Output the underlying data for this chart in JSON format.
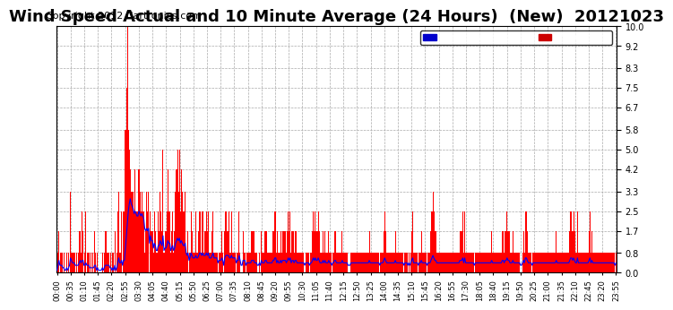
{
  "title": "Wind Speed Actual and 10 Minute Average (24 Hours)  (New)  20121023",
  "copyright": "Copyright 2012 Cartronics.com",
  "yticks": [
    0.0,
    0.8,
    1.7,
    2.5,
    3.3,
    4.2,
    5.0,
    5.8,
    6.7,
    7.5,
    8.3,
    9.2,
    10.0
  ],
  "ylim": [
    0.0,
    10.0
  ],
  "xtick_labels": [
    "00:00",
    "00:35",
    "01:10",
    "01:45",
    "02:20",
    "02:55",
    "03:30",
    "04:05",
    "04:40",
    "05:15",
    "05:50",
    "06:25",
    "07:00",
    "07:35",
    "08:10",
    "08:45",
    "09:20",
    "09:55",
    "10:30",
    "11:05",
    "11:40",
    "12:15",
    "12:50",
    "13:25",
    "14:00",
    "14:35",
    "15:10",
    "15:45",
    "16:20",
    "16:55",
    "17:30",
    "18:05",
    "18:40",
    "19:15",
    "19:50",
    "20:25",
    "21:00",
    "21:35",
    "22:10",
    "22:45",
    "23:20",
    "23:55"
  ],
  "legend_avg_color": "#0000ff",
  "legend_avg_bg": "#0000cc",
  "legend_wind_color": "#ff0000",
  "legend_wind_bg": "#cc0000",
  "bar_color": "#ff0000",
  "line_color": "#0000ff",
  "grid_color": "#aaaaaa",
  "bg_color": "#ffffff",
  "title_fontsize": 13,
  "copyright_fontsize": 8,
  "wind_values": [
    0.0,
    0.8,
    1.7,
    0.0,
    0.8,
    0.8,
    0.0,
    0.8,
    0.0,
    0.0,
    0.8,
    0.0,
    0.8,
    0.0,
    3.3,
    0.8,
    0.8,
    0.8,
    0.8,
    0.0,
    0.8,
    0.0,
    0.8,
    1.7,
    1.7,
    0.8,
    2.5,
    1.7,
    0.0,
    0.8,
    2.5,
    0.0,
    0.8,
    0.8,
    0.0,
    0.8,
    0.0,
    0.8,
    0.0,
    1.7,
    0.8,
    0.0,
    0.8,
    0.0,
    0.0,
    0.0,
    0.0,
    0.8,
    0.0,
    0.8,
    1.7,
    1.7,
    0.8,
    0.8,
    0.8,
    0.0,
    0.8,
    0.0,
    0.8,
    0.0,
    1.7,
    0.0,
    0.8,
    2.5,
    3.3,
    0.8,
    0.8,
    2.5,
    0.0,
    2.5,
    2.5,
    5.8,
    7.5,
    10.0,
    5.8,
    5.0,
    4.2,
    3.3,
    3.3,
    3.3,
    2.5,
    4.2,
    2.5,
    2.5,
    2.5,
    4.2,
    3.3,
    2.5,
    3.3,
    2.5,
    2.5,
    0.8,
    1.7,
    3.3,
    2.5,
    3.3,
    0.0,
    2.5,
    1.7,
    1.7,
    0.8,
    2.5,
    1.7,
    0.8,
    0.8,
    2.5,
    1.7,
    3.3,
    2.5,
    1.7,
    5.0,
    0.8,
    1.7,
    1.7,
    2.5,
    4.2,
    2.5,
    2.5,
    0.8,
    1.7,
    2.5,
    0.8,
    1.7,
    3.3,
    4.2,
    5.0,
    3.3,
    5.0,
    2.5,
    4.2,
    3.3,
    2.5,
    2.5,
    3.3,
    0.8,
    0.8,
    1.7,
    0.0,
    0.8,
    2.5,
    1.7,
    0.8,
    0.8,
    0.8,
    2.5,
    0.8,
    0.8,
    1.7,
    2.5,
    2.5,
    0.8,
    2.5,
    0.8,
    1.7,
    1.7,
    2.5,
    1.7,
    2.5,
    0.8,
    0.8,
    0.8,
    1.7,
    2.5,
    0.8,
    0.8,
    0.8,
    0.8,
    0.0,
    0.8,
    0.8,
    0.8,
    1.7,
    0.8,
    0.0,
    1.7,
    2.5,
    2.5,
    1.7,
    2.5,
    0.8,
    0.8,
    2.5,
    0.8,
    0.8,
    0.8,
    0.8,
    0.0,
    0.8,
    0.8,
    2.5,
    0.8,
    0.0,
    0.0,
    1.7,
    0.8,
    0.8,
    0.0,
    0.8,
    0.8,
    0.8,
    0.8,
    0.8,
    1.7,
    1.7,
    1.7,
    0.8,
    0.8,
    0.8,
    0.0,
    0.0,
    0.8,
    0.0,
    1.7,
    0.8,
    0.8,
    0.8,
    1.7,
    1.7,
    0.8,
    0.8,
    0.8,
    0.8,
    0.8,
    0.8,
    1.7,
    1.7,
    2.5,
    2.5,
    0.8,
    1.7,
    0.8,
    0.8,
    1.7,
    0.8,
    1.7,
    1.7,
    1.7,
    1.7,
    0.8,
    1.7,
    2.5,
    1.7,
    2.5,
    0.8,
    1.7,
    1.7,
    0.8,
    1.7,
    1.7,
    0.8,
    0.8,
    0.8,
    0.8,
    0.8,
    0.8,
    0.8,
    0.8,
    0.0,
    0.8,
    0.8,
    0.8,
    0.8,
    0.0,
    0.8,
    0.8,
    1.7,
    2.5,
    1.7,
    2.5,
    1.7,
    1.7,
    2.5,
    1.7,
    0.8,
    0.8,
    0.8,
    1.7,
    0.8,
    1.7,
    0.8,
    0.8,
    0.8,
    1.7,
    0.8,
    0.8,
    0.0,
    0.8,
    0.8,
    1.7,
    1.7,
    0.8,
    0.8,
    0.8,
    0.8,
    0.8,
    0.8,
    1.7,
    0.8,
    0.8,
    0.8,
    0.8,
    0.8,
    0.0,
    0.0,
    0.0,
    0.8,
    0.8,
    0.8,
    0.8,
    0.8,
    0.8,
    0.8,
    0.8,
    0.8,
    0.8,
    0.8,
    0.8,
    0.8,
    0.8,
    0.8,
    0.8,
    0.8,
    0.8,
    0.8,
    1.7,
    0.8,
    0.8,
    0.8,
    0.8,
    0.8,
    0.8,
    0.8,
    0.8,
    0.8,
    0.8,
    0.0,
    0.8,
    0.8,
    0.8,
    1.7,
    2.5,
    1.7,
    0.8,
    0.8,
    0.8,
    0.8,
    0.8,
    0.8,
    0.8,
    0.8,
    0.8,
    1.7,
    0.8,
    0.8,
    0.8,
    0.8,
    0.8,
    0.8,
    0.8,
    0.8,
    0.0,
    0.8,
    0.8,
    0.8,
    0.0,
    0.8,
    0.0,
    0.8,
    1.7,
    2.5,
    0.8,
    0.8,
    0.8,
    0.8,
    0.8,
    0.0,
    0.8,
    0.8,
    1.7,
    0.8,
    0.8,
    0.8,
    0.8,
    0.8,
    0.0,
    0.8,
    0.8,
    0.8,
    1.7,
    2.5,
    3.3,
    2.5,
    1.7,
    1.7,
    0.8,
    0.8,
    0.8,
    0.8,
    0.8,
    0.8,
    0.8,
    0.8,
    0.8,
    0.8,
    0.8,
    0.8,
    0.8,
    0.8,
    0.8,
    0.8,
    0.8,
    0.8,
    0.8,
    0.8,
    0.8,
    0.8,
    0.8,
    0.8,
    1.7,
    1.7,
    1.7,
    2.5,
    0.8,
    2.5,
    0.8,
    0.8,
    0.8,
    0.8,
    0.8,
    0.8,
    0.8,
    0.8,
    0.8,
    0.0,
    0.8,
    0.8,
    0.8,
    0.8,
    0.8,
    0.8,
    0.8,
    0.8,
    0.8,
    0.8,
    0.8,
    0.8,
    0.8,
    0.8,
    0.8,
    0.8,
    0.8,
    1.7,
    0.8,
    0.8,
    0.8,
    0.8,
    0.8,
    0.8,
    0.8,
    0.8,
    0.8,
    0.8,
    1.7,
    1.7,
    0.8,
    1.7,
    1.7,
    2.5,
    1.7,
    1.7,
    0.8,
    0.8,
    0.8,
    1.7,
    0.8,
    0.8,
    0.8,
    0.8,
    0.8,
    0.8,
    0.8,
    0.0,
    0.0,
    0.8,
    1.7,
    0.8,
    2.5,
    2.5,
    1.7,
    0.8,
    0.8,
    0.8,
    0.8,
    0.0,
    0.8,
    0.8,
    0.8,
    0.8,
    0.8,
    0.8,
    0.8,
    0.8,
    0.8,
    0.8,
    0.8,
    0.8,
    0.8,
    0.8,
    0.8,
    0.8,
    0.8,
    0.8,
    0.8,
    0.8,
    0.8,
    0.8,
    0.8,
    0.8,
    1.7,
    0.8,
    0.8,
    0.8,
    0.8,
    0.8,
    0.8,
    0.8,
    0.8,
    0.8,
    0.8,
    0.8,
    0.8,
    0.8,
    1.7,
    2.5,
    2.5,
    1.7,
    2.5,
    1.7,
    0.8,
    0.8,
    2.5,
    0.8,
    0.8,
    0.8,
    0.8,
    0.8,
    0.8,
    0.8,
    0.8,
    0.8,
    0.8,
    0.8,
    1.7,
    2.5,
    0.8,
    1.7,
    0.8,
    0.8,
    0.8,
    0.8,
    0.8,
    0.8,
    0.8,
    0.8,
    0.8,
    0.8,
    0.8,
    0.8,
    0.8,
    0.8,
    0.8,
    0.8,
    0.8,
    0.8,
    0.8,
    0.8,
    0.8,
    0.8,
    0.8,
    0.0,
    0.8
  ],
  "avg_values": [
    0.1,
    0.3,
    0.5,
    0.3,
    0.3,
    0.3,
    0.2,
    0.2,
    0.1,
    0.1,
    0.2,
    0.1,
    0.2,
    0.3,
    0.6,
    0.5,
    0.4,
    0.4,
    0.4,
    0.3,
    0.3,
    0.3,
    0.3,
    0.4,
    0.5,
    0.4,
    0.5,
    0.5,
    0.3,
    0.3,
    0.4,
    0.3,
    0.3,
    0.3,
    0.2,
    0.2,
    0.2,
    0.2,
    0.2,
    0.3,
    0.3,
    0.1,
    0.2,
    0.1,
    0.1,
    0.1,
    0.1,
    0.2,
    0.1,
    0.2,
    0.3,
    0.3,
    0.3,
    0.3,
    0.3,
    0.2,
    0.2,
    0.1,
    0.2,
    0.1,
    0.3,
    0.1,
    0.2,
    0.4,
    0.6,
    0.4,
    0.4,
    0.5,
    0.3,
    0.5,
    0.5,
    1.0,
    1.5,
    2.0,
    2.5,
    2.8,
    3.0,
    2.8,
    2.7,
    2.6,
    2.4,
    2.5,
    2.4,
    2.3,
    2.3,
    2.5,
    2.4,
    2.3,
    2.4,
    2.3,
    2.2,
    1.8,
    1.7,
    1.8,
    1.7,
    1.8,
    1.2,
    1.5,
    1.3,
    1.3,
    1.0,
    1.2,
    1.1,
    0.9,
    0.9,
    1.1,
    1.1,
    1.3,
    1.2,
    1.1,
    1.5,
    0.9,
    1.0,
    1.0,
    1.1,
    1.3,
    1.2,
    1.2,
    0.9,
    1.0,
    1.1,
    0.9,
    1.0,
    1.2,
    1.3,
    1.4,
    1.3,
    1.4,
    1.2,
    1.3,
    1.2,
    1.1,
    1.1,
    1.2,
    0.8,
    0.7,
    0.8,
    0.5,
    0.6,
    0.8,
    0.7,
    0.6,
    0.6,
    0.6,
    0.7,
    0.6,
    0.6,
    0.7,
    0.8,
    0.8,
    0.7,
    0.8,
    0.7,
    0.7,
    0.7,
    0.8,
    0.7,
    0.8,
    0.6,
    0.6,
    0.6,
    0.7,
    0.8,
    0.6,
    0.6,
    0.6,
    0.6,
    0.4,
    0.5,
    0.5,
    0.5,
    0.6,
    0.5,
    0.3,
    0.6,
    0.7,
    0.7,
    0.7,
    0.7,
    0.6,
    0.6,
    0.7,
    0.6,
    0.6,
    0.6,
    0.6,
    0.4,
    0.5,
    0.5,
    0.7,
    0.5,
    0.3,
    0.3,
    0.5,
    0.5,
    0.5,
    0.3,
    0.4,
    0.4,
    0.4,
    0.4,
    0.4,
    0.5,
    0.5,
    0.5,
    0.4,
    0.4,
    0.4,
    0.3,
    0.3,
    0.4,
    0.3,
    0.5,
    0.4,
    0.4,
    0.4,
    0.5,
    0.5,
    0.4,
    0.4,
    0.4,
    0.4,
    0.4,
    0.4,
    0.5,
    0.5,
    0.6,
    0.6,
    0.4,
    0.5,
    0.4,
    0.4,
    0.5,
    0.4,
    0.5,
    0.5,
    0.5,
    0.5,
    0.4,
    0.5,
    0.6,
    0.5,
    0.6,
    0.4,
    0.5,
    0.5,
    0.4,
    0.5,
    0.5,
    0.4,
    0.4,
    0.4,
    0.4,
    0.4,
    0.4,
    0.4,
    0.4,
    0.3,
    0.4,
    0.4,
    0.4,
    0.4,
    0.3,
    0.4,
    0.4,
    0.5,
    0.6,
    0.5,
    0.6,
    0.5,
    0.5,
    0.6,
    0.5,
    0.4,
    0.4,
    0.4,
    0.5,
    0.4,
    0.5,
    0.4,
    0.4,
    0.4,
    0.5,
    0.4,
    0.4,
    0.3,
    0.4,
    0.4,
    0.5,
    0.5,
    0.4,
    0.4,
    0.4,
    0.4,
    0.4,
    0.4,
    0.5,
    0.4,
    0.4,
    0.4,
    0.4,
    0.4,
    0.3,
    0.3,
    0.3,
    0.4,
    0.4,
    0.4,
    0.4,
    0.4,
    0.4,
    0.4,
    0.4,
    0.4,
    0.4,
    0.4,
    0.4,
    0.4,
    0.4,
    0.4,
    0.4,
    0.4,
    0.4,
    0.4,
    0.5,
    0.4,
    0.4,
    0.4,
    0.4,
    0.4,
    0.4,
    0.4,
    0.4,
    0.4,
    0.4,
    0.3,
    0.4,
    0.4,
    0.4,
    0.5,
    0.6,
    0.5,
    0.4,
    0.4,
    0.4,
    0.4,
    0.4,
    0.4,
    0.4,
    0.4,
    0.4,
    0.5,
    0.4,
    0.4,
    0.4,
    0.4,
    0.4,
    0.4,
    0.4,
    0.4,
    0.3,
    0.4,
    0.4,
    0.4,
    0.3,
    0.4,
    0.3,
    0.4,
    0.5,
    0.6,
    0.4,
    0.4,
    0.4,
    0.4,
    0.4,
    0.3,
    0.4,
    0.4,
    0.5,
    0.4,
    0.4,
    0.4,
    0.4,
    0.4,
    0.3,
    0.4,
    0.4,
    0.4,
    0.5,
    0.6,
    0.7,
    0.6,
    0.5,
    0.5,
    0.4,
    0.4,
    0.4,
    0.4,
    0.4,
    0.4,
    0.4,
    0.4,
    0.4,
    0.4,
    0.4,
    0.4,
    0.4,
    0.4,
    0.4,
    0.4,
    0.4,
    0.4,
    0.4,
    0.4,
    0.4,
    0.4,
    0.4,
    0.4,
    0.5,
    0.5,
    0.5,
    0.6,
    0.4,
    0.6,
    0.4,
    0.4,
    0.4,
    0.4,
    0.4,
    0.4,
    0.4,
    0.4,
    0.4,
    0.3,
    0.4,
    0.4,
    0.4,
    0.4,
    0.4,
    0.4,
    0.4,
    0.4,
    0.4,
    0.4,
    0.4,
    0.4,
    0.4,
    0.4,
    0.4,
    0.4,
    0.4,
    0.5,
    0.4,
    0.4,
    0.4,
    0.4,
    0.4,
    0.4,
    0.4,
    0.4,
    0.4,
    0.4,
    0.5,
    0.5,
    0.4,
    0.5,
    0.5,
    0.6,
    0.5,
    0.5,
    0.4,
    0.4,
    0.4,
    0.5,
    0.4,
    0.4,
    0.4,
    0.4,
    0.4,
    0.4,
    0.4,
    0.3,
    0.3,
    0.4,
    0.5,
    0.4,
    0.6,
    0.6,
    0.5,
    0.4,
    0.4,
    0.4,
    0.4,
    0.3,
    0.4,
    0.4,
    0.4,
    0.4,
    0.4,
    0.4,
    0.4,
    0.4,
    0.4,
    0.4,
    0.4,
    0.4,
    0.4,
    0.4,
    0.4,
    0.4,
    0.4,
    0.4,
    0.4,
    0.4,
    0.4,
    0.4,
    0.4,
    0.4,
    0.5,
    0.4,
    0.4,
    0.4,
    0.4,
    0.4,
    0.4,
    0.4,
    0.4,
    0.4,
    0.4,
    0.4,
    0.4,
    0.4,
    0.5,
    0.6,
    0.6,
    0.5,
    0.6,
    0.5,
    0.4,
    0.4,
    0.6,
    0.4,
    0.4,
    0.4,
    0.4,
    0.4,
    0.4,
    0.4,
    0.4,
    0.4,
    0.4,
    0.4,
    0.5,
    0.6,
    0.4,
    0.5,
    0.4,
    0.4,
    0.4,
    0.4,
    0.4,
    0.4,
    0.4,
    0.4,
    0.4,
    0.4,
    0.4,
    0.4,
    0.4,
    0.4,
    0.4,
    0.4,
    0.4,
    0.4,
    0.4,
    0.4,
    0.4,
    0.4,
    0.4,
    0.3,
    0.4
  ]
}
